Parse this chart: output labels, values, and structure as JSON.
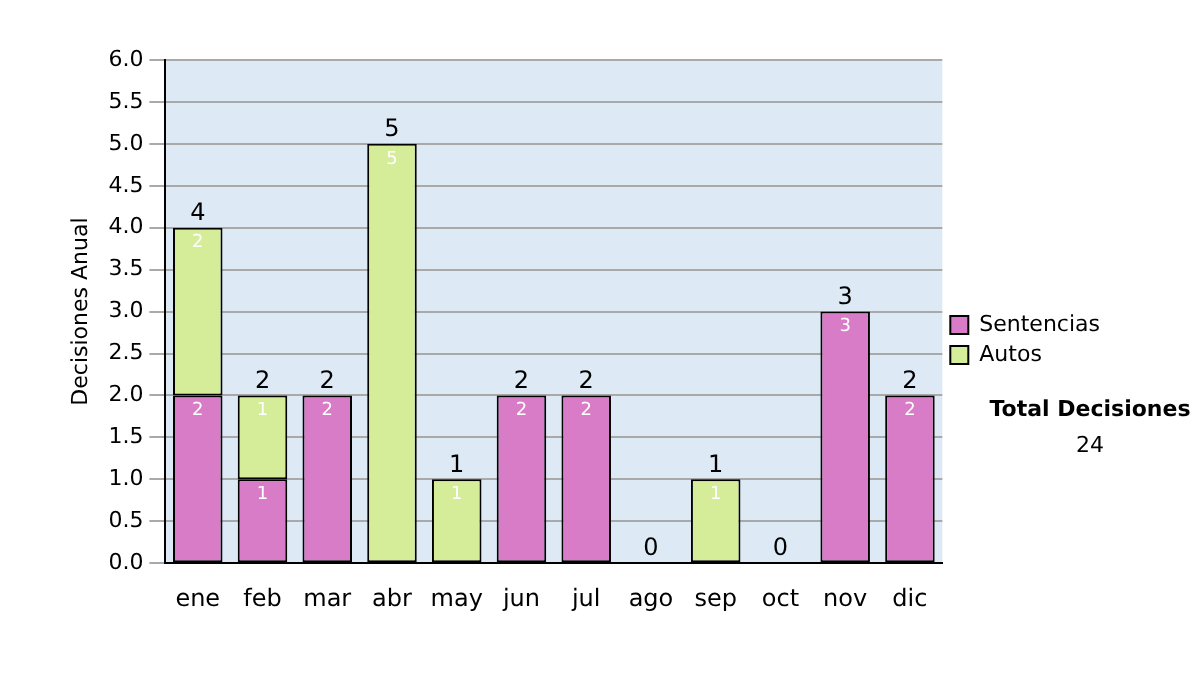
{
  "chart_data": {
    "type": "bar",
    "stacked": true,
    "ylabel": "Decisiones Anual",
    "categories": [
      "ene",
      "feb",
      "mar",
      "abr",
      "may",
      "jun",
      "jul",
      "ago",
      "sep",
      "oct",
      "nov",
      "dic"
    ],
    "series": [
      {
        "name": "Sentencias",
        "color": "#d97cc8",
        "values": [
          2,
          1,
          2,
          0,
          0,
          2,
          2,
          0,
          0,
          0,
          3,
          2
        ],
        "value_labels": [
          "2",
          "1",
          "2",
          null,
          null,
          "2",
          "2",
          null,
          null,
          null,
          "3",
          "2"
        ]
      },
      {
        "name": "Autos",
        "color": "#d5ec99",
        "values": [
          2,
          1,
          0,
          5,
          1,
          0,
          0,
          0,
          1,
          0,
          0,
          0
        ],
        "value_labels": [
          "2",
          "1",
          null,
          "5",
          "1",
          null,
          null,
          null,
          "1",
          null,
          null,
          null
        ]
      }
    ],
    "totals": [
      "4",
      "2",
      "2",
      "5",
      "1",
      "2",
      "2",
      "0",
      "1",
      "0",
      "3",
      "2"
    ],
    "ylim": [
      0,
      6
    ],
    "yticks": [
      {
        "value": 0,
        "label": "0.0"
      },
      {
        "value": 0.5,
        "label": "0.5"
      },
      {
        "value": 1,
        "label": "1.0"
      },
      {
        "value": 1.5,
        "label": "1.5"
      },
      {
        "value": 2,
        "label": "2.0"
      },
      {
        "value": 2.5,
        "label": "2.5"
      },
      {
        "value": 3,
        "label": "3.0"
      },
      {
        "value": 3.5,
        "label": "3.5"
      },
      {
        "value": 4,
        "label": "4.0"
      },
      {
        "value": 4.5,
        "label": "4.5"
      },
      {
        "value": 5,
        "label": "5.0"
      },
      {
        "value": 5.5,
        "label": "5.5"
      },
      {
        "value": 6,
        "label": "6.0"
      }
    ],
    "grid": "y",
    "legend": "right",
    "annotations": [
      "Total Decisiones",
      "24"
    ]
  }
}
